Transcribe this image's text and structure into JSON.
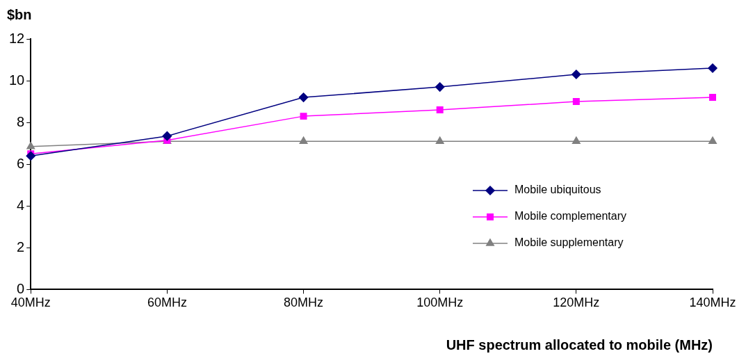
{
  "chart_data": {
    "type": "line",
    "xlabel": "UHF spectrum allocated to mobile (MHz)",
    "ylabel": "$bn",
    "categories": [
      "40MHz",
      "60MHz",
      "80MHz",
      "100MHz",
      "120MHz",
      "140MHz"
    ],
    "series": [
      {
        "name": "Mobile ubiquitous",
        "color": "#000080",
        "marker": "diamond",
        "values": [
          6.4,
          7.35,
          9.2,
          9.7,
          10.3,
          10.6
        ]
      },
      {
        "name": "Mobile complementary",
        "color": "#ff00ff",
        "marker": "square",
        "values": [
          6.5,
          7.15,
          8.3,
          8.6,
          9.0,
          9.2
        ]
      },
      {
        "name": "Mobile supplementary",
        "color": "#808080",
        "marker": "triangle",
        "values": [
          6.85,
          7.1,
          7.1,
          7.1,
          7.1,
          7.1
        ]
      }
    ],
    "ylim": [
      0,
      12
    ],
    "yticks": [
      0,
      2,
      4,
      6,
      8,
      10,
      12
    ],
    "grid": false,
    "legend": "right",
    "line_style": "solid"
  }
}
